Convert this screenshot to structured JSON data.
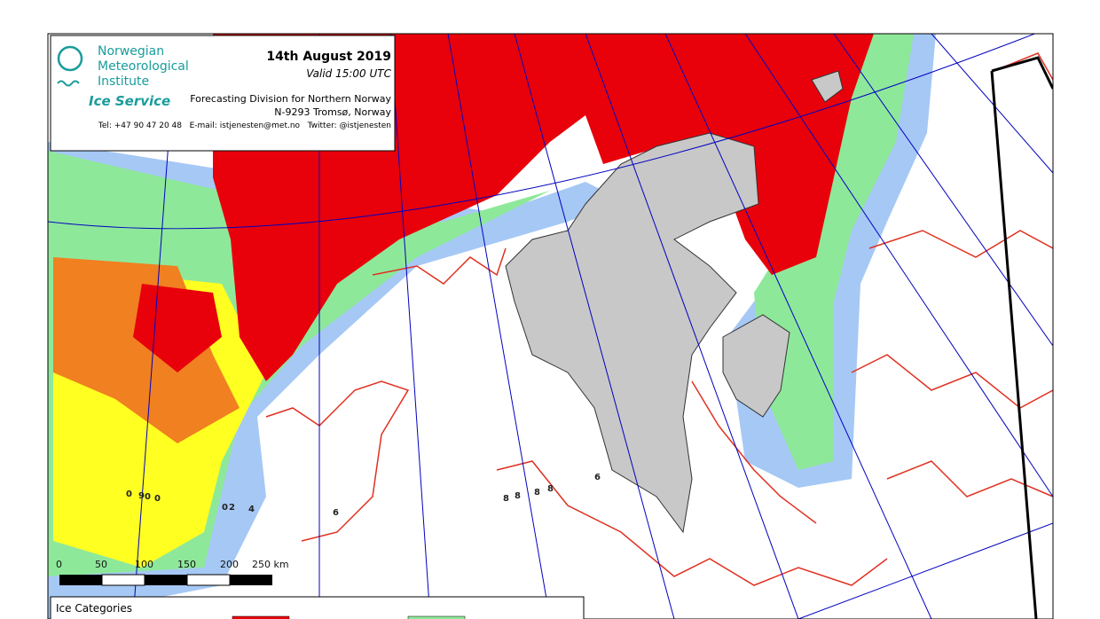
{
  "header": {
    "org_lines": [
      "Norwegian",
      "Meteorological",
      "Institute"
    ],
    "service": "Ice Service",
    "date": "14th August 2019",
    "valid": "Valid 15:00 UTC",
    "division": "Forecasting Division for Northern Norway",
    "address": "N-9293 Tromsø, Norway",
    "contact": "Tel: +47 90 47 20 48   E-mail: istjenesten@met.no   Twitter: @istjenesten"
  },
  "scale_bar": {
    "labels": [
      "0",
      "50",
      "100",
      "150",
      "200",
      "250 km"
    ]
  },
  "map_labels": [
    "6",
    "6",
    "8",
    "8",
    "8",
    "8",
    "0",
    "2",
    "4",
    "0",
    "9",
    "0",
    "0"
  ],
  "legend": {
    "title": "Ice Categories"
  }
}
